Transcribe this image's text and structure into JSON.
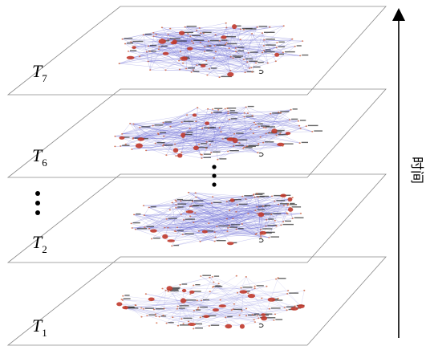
{
  "diagram": {
    "layers": [
      {
        "id": "t7",
        "base": "T",
        "subscript": "7"
      },
      {
        "id": "t6",
        "base": "T",
        "subscript": "6"
      },
      {
        "id": "t2",
        "base": "T",
        "subscript": "2"
      },
      {
        "id": "t1",
        "base": "T",
        "subscript": "1"
      }
    ],
    "time_axis_label": "时间",
    "ellipsis_between_layers": "⋮",
    "colors": {
      "plane_stroke": "#8a8a8a",
      "edge_color": "#6b6bd6",
      "hub_node": "#c0392b",
      "small_node": "#d0603a",
      "label_ink": "#333333",
      "axis": "#000000"
    }
  }
}
